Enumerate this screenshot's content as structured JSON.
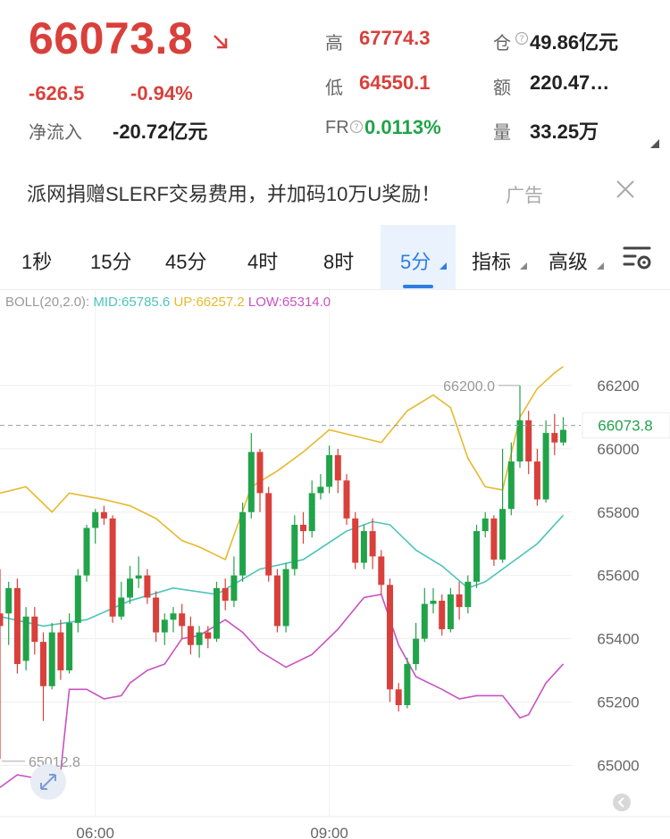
{
  "header": {
    "price": "66073.8",
    "change": "-626.5",
    "change_pct": "-0.94%",
    "netflow_label": "净流入",
    "netflow_value": "-20.72亿元",
    "high_label": "高",
    "high_value": "67774.3",
    "low_label": "低",
    "low_value": "64550.1",
    "fr_label": "FR",
    "fr_value": "0.0113%",
    "oi_label": "仓",
    "oi_value": "49.86亿元",
    "amount_label": "额",
    "amount_value": "220.47…",
    "volume_label": "量",
    "volume_value": "33.25万"
  },
  "ad": {
    "text": "派网捐赠SLERF交易费用，并加码10万U奖励！",
    "tag": "广告"
  },
  "tabs": [
    {
      "label": "1秒"
    },
    {
      "label": "15分"
    },
    {
      "label": "45分"
    },
    {
      "label": "4时"
    },
    {
      "label": "8时"
    },
    {
      "label": "5分",
      "active": true
    },
    {
      "label": "指标"
    },
    {
      "label": "高级"
    }
  ],
  "indicator": {
    "name": "BOLL(20,2.0):",
    "mid": "MID:65785.6",
    "up": "UP:66257.2",
    "low": "LOW:65314.0"
  },
  "colors": {
    "up": "#21a34a",
    "down": "#d9403b",
    "mid": "#4cc5b8",
    "upper": "#e6b92e",
    "lower": "#c952c1",
    "accent": "#2f7de1"
  },
  "chart_data": {
    "type": "candlestick",
    "y_ticks": [
      "66200",
      "66000",
      "65800",
      "65600",
      "65400",
      "65200",
      "65000"
    ],
    "x_ticks": [
      "06:00",
      "09:00"
    ],
    "ylim": [
      64880,
      66290
    ],
    "current_price": "66073.8",
    "max_label": "66200.0",
    "min_label": "65012.8",
    "candles": [
      [
        65480,
        65440,
        65620,
        65020
      ],
      [
        65480,
        65560,
        65580,
        65380
      ],
      [
        65560,
        65320,
        65590,
        65290
      ],
      [
        65330,
        65470,
        65500,
        65300
      ],
      [
        65470,
        65390,
        65500,
        65350
      ],
      [
        65390,
        65250,
        65420,
        65140
      ],
      [
        65250,
        65420,
        65450,
        65240
      ],
      [
        65420,
        65300,
        65460,
        65270
      ],
      [
        65300,
        65450,
        65480,
        65290
      ],
      [
        65450,
        65600,
        65620,
        65420
      ],
      [
        65600,
        65750,
        65760,
        65580
      ],
      [
        65750,
        65800,
        65810,
        65700
      ],
      [
        65800,
        65780,
        65820,
        65760
      ],
      [
        65780,
        65470,
        65790,
        65450
      ],
      [
        65470,
        65530,
        65580,
        65460
      ],
      [
        65530,
        65590,
        65630,
        65510
      ],
      [
        65590,
        65600,
        65660,
        65560
      ],
      [
        65600,
        65530,
        65620,
        65510
      ],
      [
        65530,
        65420,
        65550,
        65390
      ],
      [
        65420,
        65460,
        65480,
        65380
      ],
      [
        65460,
        65480,
        65500,
        65420
      ],
      [
        65480,
        65440,
        65510,
        65400
      ],
      [
        65440,
        65380,
        65470,
        65350
      ],
      [
        65380,
        65420,
        65440,
        65340
      ],
      [
        65420,
        65400,
        65440,
        65370
      ],
      [
        65400,
        65560,
        65580,
        65390
      ],
      [
        65560,
        65520,
        65590,
        65490
      ],
      [
        65520,
        65600,
        65660,
        65500
      ],
      [
        65600,
        65800,
        65830,
        65580
      ],
      [
        65800,
        65990,
        66050,
        65780
      ],
      [
        65990,
        65860,
        66000,
        65800
      ],
      [
        65860,
        65600,
        65880,
        65580
      ],
      [
        65600,
        65440,
        65620,
        65420
      ],
      [
        65440,
        65620,
        65640,
        65420
      ],
      [
        65620,
        65760,
        65790,
        65600
      ],
      [
        65760,
        65740,
        65800,
        65700
      ],
      [
        65740,
        65860,
        65900,
        65720
      ],
      [
        65860,
        65880,
        65920,
        65840
      ],
      [
        65880,
        65980,
        66010,
        65860
      ],
      [
        65980,
        65900,
        66000,
        65860
      ],
      [
        65900,
        65780,
        65920,
        65760
      ],
      [
        65780,
        65640,
        65800,
        65620
      ],
      [
        65640,
        65740,
        65760,
        65620
      ],
      [
        65740,
        65660,
        65780,
        65620
      ],
      [
        65660,
        65570,
        65680,
        65540
      ],
      [
        65570,
        65240,
        65590,
        65200
      ],
      [
        65240,
        65190,
        65260,
        65170
      ],
      [
        65190,
        65320,
        65340,
        65180
      ],
      [
        65320,
        65400,
        65450,
        65300
      ],
      [
        65400,
        65510,
        65560,
        65390
      ],
      [
        65510,
        65520,
        65560,
        65480
      ],
      [
        65520,
        65430,
        65540,
        65410
      ],
      [
        65430,
        65540,
        65560,
        65420
      ],
      [
        65540,
        65500,
        65580,
        65460
      ],
      [
        65500,
        65580,
        65600,
        65480
      ],
      [
        65580,
        65740,
        65760,
        65560
      ],
      [
        65740,
        65780,
        65800,
        65720
      ],
      [
        65780,
        65650,
        65790,
        65630
      ],
      [
        65650,
        65810,
        66000,
        65640
      ],
      [
        65810,
        65960,
        66020,
        65790
      ],
      [
        65960,
        66090,
        66200,
        65940
      ],
      [
        66090,
        65960,
        66120,
        65920
      ],
      [
        65960,
        65840,
        66000,
        65820
      ],
      [
        65840,
        66050,
        66090,
        65830
      ],
      [
        66050,
        66020,
        66110,
        65980
      ],
      [
        66020,
        66060,
        66100,
        66010
      ]
    ],
    "mid": [
      [
        0,
        65470
      ],
      [
        5,
        65440
      ],
      [
        10,
        65460
      ],
      [
        15,
        65520
      ],
      [
        20,
        65560
      ],
      [
        25,
        65540
      ],
      [
        30,
        65620
      ],
      [
        35,
        65650
      ],
      [
        40,
        65740
      ],
      [
        43,
        65770
      ],
      [
        45,
        65760
      ],
      [
        48,
        65680
      ],
      [
        51,
        65630
      ],
      [
        54,
        65560
      ],
      [
        56,
        65580
      ],
      [
        59,
        65640
      ],
      [
        62,
        65700
      ],
      [
        65,
        65790
      ]
    ],
    "upper": [
      [
        0,
        65860
      ],
      [
        3,
        65880
      ],
      [
        6,
        65800
      ],
      [
        8,
        65860
      ],
      [
        10,
        65850
      ],
      [
        12,
        65840
      ],
      [
        15,
        65820
      ],
      [
        18,
        65780
      ],
      [
        21,
        65710
      ],
      [
        23,
        65690
      ],
      [
        26,
        65650
      ],
      [
        29,
        65880
      ],
      [
        32,
        65930
      ],
      [
        35,
        65990
      ],
      [
        38,
        66060
      ],
      [
        41,
        66040
      ],
      [
        44,
        66020
      ],
      [
        47,
        66120
      ],
      [
        50,
        66170
      ],
      [
        52,
        66130
      ],
      [
        54,
        65970
      ],
      [
        56,
        65880
      ],
      [
        58,
        65870
      ],
      [
        60,
        66100
      ],
      [
        62,
        66190
      ],
      [
        64,
        66240
      ],
      [
        65,
        66260
      ]
    ],
    "lower": [
      [
        0,
        64930
      ],
      [
        2,
        64970
      ],
      [
        4,
        64960
      ],
      [
        6,
        64960
      ],
      [
        7,
        64980
      ],
      [
        8,
        65240
      ],
      [
        10,
        65240
      ],
      [
        12,
        65210
      ],
      [
        14,
        65220
      ],
      [
        15,
        65260
      ],
      [
        17,
        65300
      ],
      [
        19,
        65320
      ],
      [
        21,
        65400
      ],
      [
        23,
        65410
      ],
      [
        26,
        65460
      ],
      [
        28,
        65420
      ],
      [
        30,
        65360
      ],
      [
        33,
        65310
      ],
      [
        36,
        65350
      ],
      [
        39,
        65430
      ],
      [
        42,
        65530
      ],
      [
        44,
        65540
      ],
      [
        46,
        65380
      ],
      [
        48,
        65280
      ],
      [
        51,
        65240
      ],
      [
        53,
        65210
      ],
      [
        55,
        65220
      ],
      [
        58,
        65220
      ],
      [
        60,
        65150
      ],
      [
        61,
        65160
      ],
      [
        63,
        65260
      ],
      [
        65,
        65320
      ]
    ]
  }
}
